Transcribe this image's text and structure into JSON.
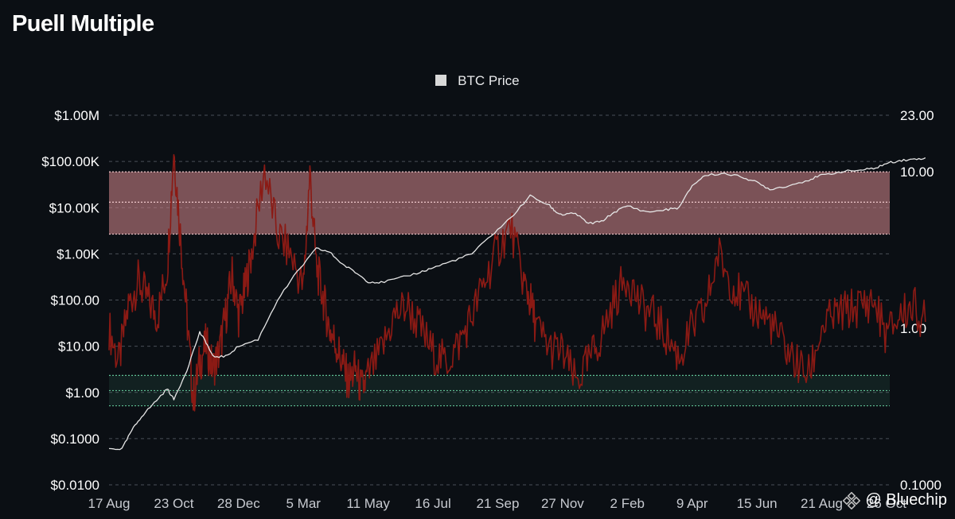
{
  "title": "Puell Multiple",
  "legend": {
    "label": "BTC Price",
    "color": "#d8d8d8"
  },
  "watermark": {
    "text": "@ Bluechip"
  },
  "colors": {
    "background": "#0b0f14",
    "puell": "#8b1a14",
    "price": "#e6e6e6",
    "upper_band": "#c77f84",
    "lower_band": "#3f8a6a",
    "grid": "#4a4f57"
  },
  "chart_data": {
    "type": "line",
    "title": "Puell Multiple",
    "x_tick_labels": [
      "17 Aug",
      "23 Oct",
      "28 Dec",
      "5 Mar",
      "11 May",
      "16 Jul",
      "21 Sep",
      "27 Nov",
      "2 Feb",
      "9 Apr",
      "15 Jun",
      "21 Aug",
      "26 Oct"
    ],
    "left_axis": {
      "label": "",
      "scale": "log",
      "range": [
        0.01,
        1000000
      ],
      "tick_labels": [
        "$1.00M",
        "$100.00K",
        "$10.00K",
        "$1.00K",
        "$100.00",
        "$10.00",
        "$1.00",
        "$0.1000",
        "$0.0100"
      ]
    },
    "right_axis": {
      "label": "",
      "scale": "log",
      "range": [
        0.1,
        23
      ],
      "tick_labels": [
        "23.00",
        "10.00",
        "1.00",
        "0.1000"
      ]
    },
    "bands": [
      {
        "axis": "right",
        "range": [
          4.0,
          10.0
        ],
        "midline": 6.4,
        "color": "#c77f84"
      },
      {
        "axis": "right",
        "range": [
          0.32,
          0.5
        ],
        "midline": 0.4,
        "color": "#3f8a6a"
      }
    ],
    "grid": true,
    "legend_position": "top-center",
    "series": [
      {
        "name": "BTC Price",
        "axis": "left",
        "x": [
          0,
          0.2,
          0.35,
          0.5,
          0.7,
          0.9,
          1.0,
          1.2,
          1.4,
          1.5,
          1.6,
          1.8,
          2.0,
          2.3,
          2.6,
          2.9,
          3.2,
          3.4,
          3.6,
          3.8,
          4.0,
          4.2,
          4.5,
          4.8,
          5.0,
          5.3,
          5.6,
          5.9,
          6.2,
          6.5,
          6.8,
          6.9,
          7.0,
          7.2,
          7.4,
          7.6,
          7.8,
          8.0,
          8.3,
          8.6,
          8.8,
          9.0,
          9.2,
          9.5,
          9.8,
          10.0,
          10.2,
          10.5,
          10.8,
          11.0,
          11.3,
          11.6,
          11.8,
          12.0,
          12.2,
          12.4,
          12.6
        ],
        "y": [
          0.06,
          0.06,
          0.15,
          0.3,
          0.6,
          1.2,
          0.7,
          3,
          20,
          12,
          6,
          6,
          10,
          14,
          100,
          400,
          1300,
          1100,
          600,
          400,
          250,
          240,
          300,
          400,
          500,
          700,
          1000,
          2500,
          6000,
          18000,
          11000,
          8000,
          7000,
          7500,
          4500,
          5000,
          8000,
          11000,
          8000,
          9000,
          10000,
          30000,
          50000,
          55000,
          45000,
          35000,
          25000,
          30000,
          40000,
          50000,
          60000,
          65000,
          70000,
          90000,
          105000,
          110000,
          120000
        ]
      },
      {
        "name": "Puell Multiple",
        "axis": "right",
        "x": [
          0,
          0.15,
          0.3,
          0.45,
          0.6,
          0.75,
          0.9,
          1.0,
          1.1,
          1.2,
          1.3,
          1.4,
          1.5,
          1.6,
          1.7,
          1.8,
          1.9,
          2.0,
          2.1,
          2.2,
          2.4,
          2.6,
          2.8,
          3.0,
          3.1,
          3.2,
          3.3,
          3.4,
          3.5,
          3.6,
          3.7,
          3.8,
          3.9,
          4.0,
          4.2,
          4.4,
          4.6,
          4.8,
          5.0,
          5.2,
          5.4,
          5.6,
          5.8,
          6.0,
          6.2,
          6.4,
          6.5,
          6.6,
          6.8,
          7.0,
          7.2,
          7.4,
          7.6,
          7.8,
          8.0,
          8.2,
          8.4,
          8.6,
          8.8,
          9.0,
          9.2,
          9.4,
          9.6,
          9.8,
          10.0,
          10.2,
          10.4,
          10.6,
          10.8,
          11.0,
          11.2,
          11.4,
          11.6,
          11.8,
          12.0,
          12.2,
          12.4,
          12.6
        ],
        "y": [
          1.0,
          0.6,
          1.4,
          2.0,
          1.5,
          1.2,
          2.5,
          14,
          4.0,
          1.2,
          0.35,
          0.6,
          0.8,
          0.55,
          0.7,
          1.2,
          2.2,
          1.2,
          1.8,
          3.0,
          10.5,
          4.0,
          3.0,
          1.8,
          9.8,
          2.5,
          1.6,
          1.0,
          0.8,
          0.6,
          0.45,
          0.55,
          0.4,
          0.5,
          0.7,
          1.2,
          1.4,
          1.0,
          0.7,
          0.6,
          0.8,
          1.2,
          2.0,
          3.2,
          4.5,
          2.0,
          1.5,
          1.0,
          0.75,
          0.7,
          0.45,
          0.6,
          0.9,
          1.5,
          2.2,
          1.4,
          1.2,
          0.9,
          0.65,
          1.0,
          1.3,
          3.0,
          2.0,
          1.5,
          1.3,
          1.1,
          0.8,
          0.6,
          0.5,
          1.0,
          1.2,
          1.3,
          1.4,
          1.5,
          0.9,
          1.2,
          1.4,
          1.1
        ]
      }
    ]
  }
}
